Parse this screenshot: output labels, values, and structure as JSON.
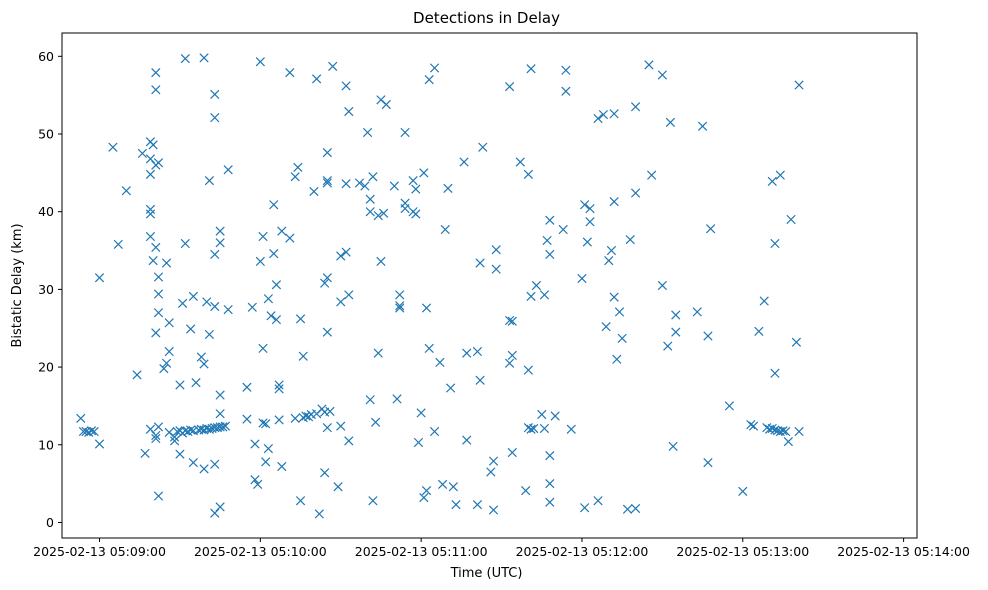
{
  "chart_data": {
    "type": "scatter",
    "title": "Detections in Delay",
    "xlabel": "Time (UTC)",
    "ylabel": "Bistatic Delay (km)",
    "marker": "x",
    "color": "#1f77b4",
    "grid": false,
    "xlim": [
      "2025-02-13 05:08:46",
      "2025-02-13 05:14:05"
    ],
    "ylim": [
      -2,
      63
    ],
    "x_ticks": [
      "2025-02-13 05:09:00",
      "2025-02-13 05:10:00",
      "2025-02-13 05:11:00",
      "2025-02-13 05:12:00",
      "2025-02-13 05:13:00",
      "2025-02-13 05:14:00"
    ],
    "y_ticks": [
      0,
      10,
      20,
      30,
      40,
      50,
      60
    ],
    "points": [
      [
        "2025-02-13 05:08:53",
        13.4
      ],
      [
        "2025-02-13 05:08:54",
        11.7
      ],
      [
        "2025-02-13 05:08:55",
        11.7
      ],
      [
        "2025-02-13 05:08:56",
        11.6
      ],
      [
        "2025-02-13 05:08:57",
        11.8
      ],
      [
        "2025-02-13 05:08:58",
        11.7
      ],
      [
        "2025-02-13 05:09:00",
        31.5
      ],
      [
        "2025-02-13 05:09:00",
        10.1
      ],
      [
        "2025-02-13 05:09:05",
        48.3
      ],
      [
        "2025-02-13 05:09:07",
        35.8
      ],
      [
        "2025-02-13 05:09:10",
        42.7
      ],
      [
        "2025-02-13 05:09:14",
        19.0
      ],
      [
        "2025-02-13 05:09:16",
        47.5
      ],
      [
        "2025-02-13 05:09:17",
        8.9
      ],
      [
        "2025-02-13 05:09:19",
        49.0
      ],
      [
        "2025-02-13 05:09:20",
        48.6
      ],
      [
        "2025-02-13 05:09:19",
        46.8
      ],
      [
        "2025-02-13 05:09:19",
        44.8
      ],
      [
        "2025-02-13 05:09:19",
        40.3
      ],
      [
        "2025-02-13 05:09:19",
        39.7
      ],
      [
        "2025-02-13 05:09:19",
        36.8
      ],
      [
        "2025-02-13 05:09:20",
        33.7
      ],
      [
        "2025-02-13 05:09:19",
        12.0
      ],
      [
        "2025-02-13 05:09:21",
        57.9
      ],
      [
        "2025-02-13 05:09:21",
        55.7
      ],
      [
        "2025-02-13 05:09:22",
        46.3
      ],
      [
        "2025-02-13 05:09:21",
        46.0
      ],
      [
        "2025-02-13 05:09:21",
        35.4
      ],
      [
        "2025-02-13 05:09:22",
        31.6
      ],
      [
        "2025-02-13 05:09:22",
        29.4
      ],
      [
        "2025-02-13 05:09:22",
        27.0
      ],
      [
        "2025-02-13 05:09:21",
        24.4
      ],
      [
        "2025-02-13 05:09:21",
        11.2
      ],
      [
        "2025-02-13 05:09:21",
        10.8
      ],
      [
        "2025-02-13 05:09:22",
        12.3
      ],
      [
        "2025-02-13 05:09:22",
        3.4
      ],
      [
        "2025-02-13 05:09:24",
        19.8
      ],
      [
        "2025-02-13 05:09:25",
        33.4
      ],
      [
        "2025-02-13 05:09:25",
        20.5
      ],
      [
        "2025-02-13 05:09:26",
        25.7
      ],
      [
        "2025-02-13 05:09:26",
        22.0
      ],
      [
        "2025-02-13 05:09:26",
        11.6
      ],
      [
        "2025-02-13 05:09:28",
        11.0
      ],
      [
        "2025-02-13 05:09:28",
        10.5
      ],
      [
        "2025-02-13 05:09:29",
        11.7
      ],
      [
        "2025-02-13 05:09:30",
        11.8
      ],
      [
        "2025-02-13 05:09:31",
        11.5
      ],
      [
        "2025-02-13 05:09:32",
        11.8
      ],
      [
        "2025-02-13 05:09:33",
        11.7
      ],
      [
        "2025-02-13 05:09:34",
        11.9
      ],
      [
        "2025-02-13 05:09:35",
        11.8
      ],
      [
        "2025-02-13 05:09:30",
        17.7
      ],
      [
        "2025-02-13 05:09:30",
        8.8
      ],
      [
        "2025-02-13 05:09:31",
        28.2
      ],
      [
        "2025-02-13 05:09:32",
        35.9
      ],
      [
        "2025-02-13 05:09:32",
        59.7
      ],
      [
        "2025-02-13 05:09:34",
        24.9
      ],
      [
        "2025-02-13 05:09:35",
        29.1
      ],
      [
        "2025-02-13 05:09:36",
        18.0
      ],
      [
        "2025-02-13 05:09:35",
        7.7
      ],
      [
        "2025-02-13 05:09:37",
        11.9
      ],
      [
        "2025-02-13 05:09:38",
        12.0
      ],
      [
        "2025-02-13 05:09:39",
        11.9
      ],
      [
        "2025-02-13 05:09:40",
        12.1
      ],
      [
        "2025-02-13 05:09:41",
        12.0
      ],
      [
        "2025-02-13 05:09:42",
        12.1
      ],
      [
        "2025-02-13 05:09:43",
        12.2
      ],
      [
        "2025-02-13 05:09:44",
        12.2
      ],
      [
        "2025-02-13 05:09:45",
        12.3
      ],
      [
        "2025-02-13 05:09:46",
        12.3
      ],
      [
        "2025-02-13 05:09:47",
        12.4
      ],
      [
        "2025-02-13 05:09:38",
        21.3
      ],
      [
        "2025-02-13 05:09:39",
        20.4
      ],
      [
        "2025-02-13 05:09:39",
        6.9
      ],
      [
        "2025-02-13 05:09:39",
        59.8
      ],
      [
        "2025-02-13 05:09:40",
        28.4
      ],
      [
        "2025-02-13 05:09:41",
        24.2
      ],
      [
        "2025-02-13 05:09:41",
        44.0
      ],
      [
        "2025-02-13 05:09:43",
        55.1
      ],
      [
        "2025-02-13 05:09:43",
        52.1
      ],
      [
        "2025-02-13 05:09:43",
        34.5
      ],
      [
        "2025-02-13 05:09:43",
        27.8
      ],
      [
        "2025-02-13 05:09:43",
        7.5
      ],
      [
        "2025-02-13 05:09:43",
        1.2
      ],
      [
        "2025-02-13 05:09:45",
        37.5
      ],
      [
        "2025-02-13 05:09:45",
        36.0
      ],
      [
        "2025-02-13 05:09:45",
        16.4
      ],
      [
        "2025-02-13 05:09:45",
        14.0
      ],
      [
        "2025-02-13 05:09:45",
        2.0
      ],
      [
        "2025-02-13 05:09:48",
        45.4
      ],
      [
        "2025-02-13 05:09:48",
        27.4
      ],
      [
        "2025-02-13 05:09:55",
        17.4
      ],
      [
        "2025-02-13 05:09:55",
        13.3
      ],
      [
        "2025-02-13 05:09:57",
        27.7
      ],
      [
        "2025-02-13 05:09:58",
        10.1
      ],
      [
        "2025-02-13 05:09:58",
        5.5
      ],
      [
        "2025-02-13 05:09:59",
        4.9
      ],
      [
        "2025-02-13 05:10:00",
        59.3
      ],
      [
        "2025-02-13 05:10:00",
        33.6
      ],
      [
        "2025-02-13 05:10:01",
        36.8
      ],
      [
        "2025-02-13 05:10:01",
        22.4
      ],
      [
        "2025-02-13 05:10:01",
        12.8
      ],
      [
        "2025-02-13 05:10:02",
        12.7
      ],
      [
        "2025-02-13 05:10:02",
        7.8
      ],
      [
        "2025-02-13 05:10:03",
        28.8
      ],
      [
        "2025-02-13 05:10:03",
        9.5
      ],
      [
        "2025-02-13 05:10:04",
        26.6
      ],
      [
        "2025-02-13 05:10:05",
        34.6
      ],
      [
        "2025-02-13 05:10:05",
        40.9
      ],
      [
        "2025-02-13 05:10:06",
        30.6
      ],
      [
        "2025-02-13 05:10:06",
        26.1
      ],
      [
        "2025-02-13 05:10:07",
        17.7
      ],
      [
        "2025-02-13 05:10:07",
        17.2
      ],
      [
        "2025-02-13 05:10:07",
        13.2
      ],
      [
        "2025-02-13 05:10:08",
        37.5
      ],
      [
        "2025-02-13 05:10:08",
        7.2
      ],
      [
        "2025-02-13 05:10:11",
        57.9
      ],
      [
        "2025-02-13 05:10:11",
        36.6
      ],
      [
        "2025-02-13 05:10:13",
        44.5
      ],
      [
        "2025-02-13 05:10:14",
        45.7
      ],
      [
        "2025-02-13 05:10:13",
        13.4
      ],
      [
        "2025-02-13 05:10:15",
        26.2
      ],
      [
        "2025-02-13 05:10:16",
        21.4
      ],
      [
        "2025-02-13 05:10:15",
        2.8
      ],
      [
        "2025-02-13 05:10:16",
        13.5
      ],
      [
        "2025-02-13 05:10:17",
        13.7
      ],
      [
        "2025-02-13 05:10:18",
        13.6
      ],
      [
        "2025-02-13 05:10:19",
        13.9
      ],
      [
        "2025-02-13 05:10:20",
        42.6
      ],
      [
        "2025-02-13 05:10:21",
        57.1
      ],
      [
        "2025-02-13 05:10:21",
        14.0
      ],
      [
        "2025-02-13 05:10:22",
        1.1
      ],
      [
        "2025-02-13 05:10:23",
        14.6
      ],
      [
        "2025-02-13 05:10:24",
        14.2
      ],
      [
        "2025-02-13 05:10:24",
        30.8
      ],
      [
        "2025-02-13 05:10:25",
        31.5
      ],
      [
        "2025-02-13 05:10:25",
        43.7
      ],
      [
        "2025-02-13 05:10:25",
        47.6
      ],
      [
        "2025-02-13 05:10:25",
        44.0
      ],
      [
        "2025-02-13 05:10:25",
        24.5
      ],
      [
        "2025-02-13 05:10:25",
        12.2
      ],
      [
        "2025-02-13 05:10:24",
        6.4
      ],
      [
        "2025-02-13 05:10:26",
        14.3
      ],
      [
        "2025-02-13 05:10:27",
        58.7
      ],
      [
        "2025-02-13 05:10:29",
        4.6
      ],
      [
        "2025-02-13 05:10:30",
        34.3
      ],
      [
        "2025-02-13 05:10:30",
        28.4
      ],
      [
        "2025-02-13 05:10:30",
        12.4
      ],
      [
        "2025-02-13 05:10:32",
        56.2
      ],
      [
        "2025-02-13 05:10:32",
        43.6
      ],
      [
        "2025-02-13 05:10:32",
        34.8
      ],
      [
        "2025-02-13 05:10:33",
        52.9
      ],
      [
        "2025-02-13 05:10:33",
        29.3
      ],
      [
        "2025-02-13 05:10:33",
        10.5
      ],
      [
        "2025-02-13 05:10:37",
        43.7
      ],
      [
        "2025-02-13 05:10:40",
        50.2
      ],
      [
        "2025-02-13 05:10:39",
        43.3
      ],
      [
        "2025-02-13 05:10:41",
        41.6
      ],
      [
        "2025-02-13 05:10:42",
        44.5
      ],
      [
        "2025-02-13 05:10:41",
        40.0
      ],
      [
        "2025-02-13 05:10:41",
        15.8
      ],
      [
        "2025-02-13 05:10:42",
        2.8
      ],
      [
        "2025-02-13 05:10:43",
        12.9
      ],
      [
        "2025-02-13 05:10:45",
        54.4
      ],
      [
        "2025-02-13 05:10:44",
        39.5
      ],
      [
        "2025-02-13 05:10:45",
        33.6
      ],
      [
        "2025-02-13 05:10:44",
        21.8
      ],
      [
        "2025-02-13 05:10:46",
        39.8
      ],
      [
        "2025-02-13 05:10:47",
        53.8
      ],
      [
        "2025-02-13 05:10:50",
        43.3
      ],
      [
        "2025-02-13 05:10:51",
        15.9
      ],
      [
        "2025-02-13 05:10:52",
        29.3
      ],
      [
        "2025-02-13 05:10:52",
        27.9
      ],
      [
        "2025-02-13 05:10:52",
        27.6
      ],
      [
        "2025-02-13 05:10:54",
        41.1
      ],
      [
        "2025-02-13 05:10:54",
        40.4
      ],
      [
        "2025-02-13 05:10:54",
        50.2
      ],
      [
        "2025-02-13 05:10:57",
        40.0
      ],
      [
        "2025-02-13 05:10:58",
        42.9
      ],
      [
        "2025-02-13 05:10:58",
        39.7
      ],
      [
        "2025-02-13 05:10:57",
        44.0
      ],
      [
        "2025-02-13 05:10:59",
        10.3
      ],
      [
        "2025-02-13 05:11:00",
        14.1
      ],
      [
        "2025-02-13 05:11:01",
        45.0
      ],
      [
        "2025-02-13 05:11:01",
        3.2
      ],
      [
        "2025-02-13 05:11:02",
        27.6
      ],
      [
        "2025-02-13 05:11:02",
        4.1
      ],
      [
        "2025-02-13 05:11:03",
        57.0
      ],
      [
        "2025-02-13 05:11:03",
        22.4
      ],
      [
        "2025-02-13 05:11:05",
        58.5
      ],
      [
        "2025-02-13 05:11:05",
        11.7
      ],
      [
        "2025-02-13 05:11:07",
        20.6
      ],
      [
        "2025-02-13 05:11:08",
        4.9
      ],
      [
        "2025-02-13 05:11:09",
        37.7
      ],
      [
        "2025-02-13 05:11:10",
        43.0
      ],
      [
        "2025-02-13 05:11:11",
        17.3
      ],
      [
        "2025-02-13 05:11:12",
        4.6
      ],
      [
        "2025-02-13 05:11:13",
        2.3
      ],
      [
        "2025-02-13 05:11:16",
        46.4
      ],
      [
        "2025-02-13 05:11:17",
        21.8
      ],
      [
        "2025-02-13 05:11:17",
        10.6
      ],
      [
        "2025-02-13 05:11:21",
        22.0
      ],
      [
        "2025-02-13 05:11:21",
        2.3
      ],
      [
        "2025-02-13 05:11:22",
        33.4
      ],
      [
        "2025-02-13 05:11:22",
        18.3
      ],
      [
        "2025-02-13 05:11:23",
        48.3
      ],
      [
        "2025-02-13 05:11:26",
        6.5
      ],
      [
        "2025-02-13 05:11:27",
        7.9
      ],
      [
        "2025-02-13 05:11:27",
        1.6
      ],
      [
        "2025-02-13 05:11:28",
        35.1
      ],
      [
        "2025-02-13 05:11:28",
        32.6
      ],
      [
        "2025-02-13 05:11:33",
        56.1
      ],
      [
        "2025-02-13 05:11:33",
        26.0
      ],
      [
        "2025-02-13 05:11:33",
        20.5
      ],
      [
        "2025-02-13 05:11:34",
        21.5
      ],
      [
        "2025-02-13 05:11:34",
        25.9
      ],
      [
        "2025-02-13 05:11:34",
        9.0
      ],
      [
        "2025-02-13 05:11:37",
        46.4
      ],
      [
        "2025-02-13 05:11:39",
        4.1
      ],
      [
        "2025-02-13 05:11:40",
        44.8
      ],
      [
        "2025-02-13 05:11:40",
        19.6
      ],
      [
        "2025-02-13 05:11:40",
        12.2
      ],
      [
        "2025-02-13 05:11:41",
        12.0
      ],
      [
        "2025-02-13 05:11:42",
        12.1
      ],
      [
        "2025-02-13 05:11:41",
        58.4
      ],
      [
        "2025-02-13 05:11:41",
        29.1
      ],
      [
        "2025-02-13 05:11:43",
        30.5
      ],
      [
        "2025-02-13 05:11:45",
        13.9
      ],
      [
        "2025-02-13 05:11:46",
        29.3
      ],
      [
        "2025-02-13 05:11:46",
        12.1
      ],
      [
        "2025-02-13 05:11:47",
        36.3
      ],
      [
        "2025-02-13 05:11:48",
        38.9
      ],
      [
        "2025-02-13 05:11:48",
        34.5
      ],
      [
        "2025-02-13 05:11:48",
        8.6
      ],
      [
        "2025-02-13 05:11:48",
        5.0
      ],
      [
        "2025-02-13 05:11:48",
        2.6
      ],
      [
        "2025-02-13 05:11:50",
        13.7
      ],
      [
        "2025-02-13 05:11:54",
        58.2
      ],
      [
        "2025-02-13 05:11:54",
        55.5
      ],
      [
        "2025-02-13 05:11:53",
        37.7
      ],
      [
        "2025-02-13 05:11:56",
        12.0
      ],
      [
        "2025-02-13 05:12:00",
        31.4
      ],
      [
        "2025-02-13 05:12:01",
        40.9
      ],
      [
        "2025-02-13 05:12:02",
        36.1
      ],
      [
        "2025-02-13 05:12:01",
        1.9
      ],
      [
        "2025-02-13 05:12:03",
        40.4
      ],
      [
        "2025-02-13 05:12:03",
        38.7
      ],
      [
        "2025-02-13 05:12:06",
        52.0
      ],
      [
        "2025-02-13 05:12:06",
        2.8
      ],
      [
        "2025-02-13 05:12:08",
        52.5
      ],
      [
        "2025-02-13 05:12:09",
        25.2
      ],
      [
        "2025-02-13 05:12:10",
        33.7
      ],
      [
        "2025-02-13 05:12:11",
        35.0
      ],
      [
        "2025-02-13 05:12:12",
        52.6
      ],
      [
        "2025-02-13 05:12:12",
        41.3
      ],
      [
        "2025-02-13 05:12:12",
        29.0
      ],
      [
        "2025-02-13 05:12:13",
        21.0
      ],
      [
        "2025-02-13 05:12:14",
        27.1
      ],
      [
        "2025-02-13 05:12:15",
        23.7
      ],
      [
        "2025-02-13 05:12:17",
        1.7
      ],
      [
        "2025-02-13 05:12:18",
        36.4
      ],
      [
        "2025-02-13 05:12:20",
        1.8
      ],
      [
        "2025-02-13 05:12:20",
        53.5
      ],
      [
        "2025-02-13 05:12:20",
        42.4
      ],
      [
        "2025-02-13 05:12:25",
        58.9
      ],
      [
        "2025-02-13 05:12:26",
        44.7
      ],
      [
        "2025-02-13 05:12:30",
        57.6
      ],
      [
        "2025-02-13 05:12:30",
        30.5
      ],
      [
        "2025-02-13 05:12:32",
        22.7
      ],
      [
        "2025-02-13 05:12:33",
        51.5
      ],
      [
        "2025-02-13 05:12:34",
        9.8
      ],
      [
        "2025-02-13 05:12:35",
        26.7
      ],
      [
        "2025-02-13 05:12:35",
        24.5
      ],
      [
        "2025-02-13 05:12:43",
        27.1
      ],
      [
        "2025-02-13 05:12:45",
        51.0
      ],
      [
        "2025-02-13 05:12:48",
        37.8
      ],
      [
        "2025-02-13 05:12:47",
        24.0
      ],
      [
        "2025-02-13 05:12:47",
        7.7
      ],
      [
        "2025-02-13 05:12:55",
        15.0
      ],
      [
        "2025-02-13 05:13:00",
        4.0
      ],
      [
        "2025-02-13 05:13:03",
        12.6
      ],
      [
        "2025-02-13 05:13:04",
        12.4
      ],
      [
        "2025-02-13 05:13:06",
        24.6
      ],
      [
        "2025-02-13 05:13:08",
        28.5
      ],
      [
        "2025-02-13 05:13:09",
        12.2
      ],
      [
        "2025-02-13 05:13:10",
        12.0
      ],
      [
        "2025-02-13 05:13:11",
        12.1
      ],
      [
        "2025-02-13 05:13:12",
        11.9
      ],
      [
        "2025-02-13 05:13:13",
        11.8
      ],
      [
        "2025-02-13 05:13:14",
        11.7
      ],
      [
        "2025-02-13 05:13:15",
        11.8
      ],
      [
        "2025-02-13 05:13:16",
        11.7
      ],
      [
        "2025-02-13 05:13:11",
        43.9
      ],
      [
        "2025-02-13 05:13:12",
        35.9
      ],
      [
        "2025-02-13 05:13:12",
        19.2
      ],
      [
        "2025-02-13 05:13:14",
        44.7
      ],
      [
        "2025-02-13 05:13:18",
        39.0
      ],
      [
        "2025-02-13 05:13:17",
        10.4
      ],
      [
        "2025-02-13 05:13:20",
        23.2
      ],
      [
        "2025-02-13 05:13:21",
        56.3
      ],
      [
        "2025-02-13 05:13:21",
        11.7
      ]
    ]
  }
}
